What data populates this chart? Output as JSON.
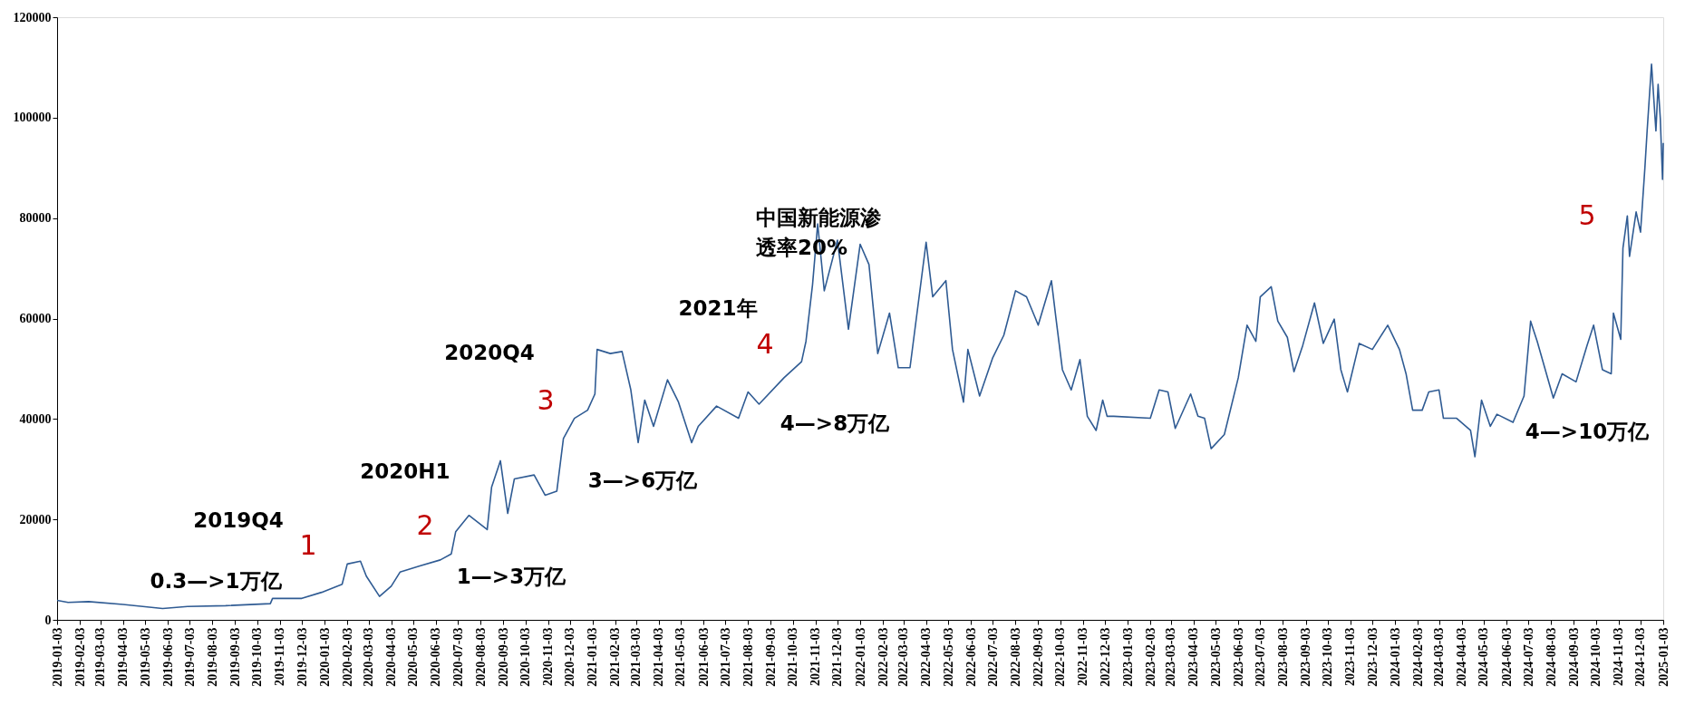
{
  "chart_data": {
    "type": "line",
    "xlim": [
      "2019-01-03",
      "2025-01-03"
    ],
    "ylim": [
      0,
      120000
    ],
    "yticks": [
      0,
      20000,
      40000,
      60000,
      80000,
      100000,
      120000
    ],
    "xticks": [
      "2019-01-03",
      "2019-02-03",
      "2019-03-03",
      "2019-04-03",
      "2019-05-03",
      "2019-06-03",
      "2019-07-03",
      "2019-08-03",
      "2019-09-03",
      "2019-10-03",
      "2019-11-03",
      "2019-12-03",
      "2020-01-03",
      "2020-02-03",
      "2020-03-03",
      "2020-04-03",
      "2020-05-03",
      "2020-06-03",
      "2020-07-03",
      "2020-08-03",
      "2020-09-03",
      "2020-10-03",
      "2020-11-03",
      "2020-12-03",
      "2021-01-03",
      "2021-02-03",
      "2021-03-03",
      "2021-04-03",
      "2021-05-03",
      "2021-06-03",
      "2021-07-03",
      "2021-08-03",
      "2021-09-03",
      "2021-10-03",
      "2021-11-03",
      "2021-12-03",
      "2022-01-03",
      "2022-02-03",
      "2022-03-03",
      "2022-04-03",
      "2022-05-03",
      "2022-06-03",
      "2022-07-03",
      "2022-08-03",
      "2022-09-03",
      "2022-10-03",
      "2022-11-03",
      "2022-12-03",
      "2023-01-03",
      "2023-02-03",
      "2023-03-03",
      "2023-04-03",
      "2023-05-03",
      "2023-06-03",
      "2023-07-03",
      "2023-08-03",
      "2023-09-03",
      "2023-10-03",
      "2023-11-03",
      "2023-12-03",
      "2024-01-03",
      "2024-02-03",
      "2024-03-03",
      "2024-04-03",
      "2024-05-03",
      "2024-06-03",
      "2024-07-03",
      "2024-08-03",
      "2024-09-03",
      "2024-10-03",
      "2024-11-03",
      "2024-12-03",
      "2025-01-03"
    ],
    "x": [
      "2019-01-03",
      "2019-01-18",
      "2019-02-15",
      "2019-04-03",
      "2019-05-27",
      "2019-06-30",
      "2019-08-21",
      "2019-10-21",
      "2019-10-24",
      "2019-12-03",
      "2019-12-30",
      "2020-01-27",
      "2020-02-03",
      "2020-02-21",
      "2020-02-29",
      "2020-03-18",
      "2020-04-03",
      "2020-04-15",
      "2020-05-12",
      "2020-06-09",
      "2020-06-24",
      "2020-06-30",
      "2020-07-18",
      "2020-08-12",
      "2020-08-18",
      "2020-08-30",
      "2020-09-09",
      "2020-09-18",
      "2020-10-15",
      "2020-10-30",
      "2020-11-15",
      "2020-11-24",
      "2020-12-09",
      "2020-12-27",
      "2021-01-06",
      "2021-01-09",
      "2021-01-27",
      "2021-02-12",
      "2021-02-24",
      "2021-03-06",
      "2021-03-15",
      "2021-03-27",
      "2021-04-15",
      "2021-04-30",
      "2021-05-18",
      "2021-05-27",
      "2021-06-21",
      "2021-07-21",
      "2021-08-03",
      "2021-08-18",
      "2021-09-21",
      "2021-10-15",
      "2021-10-21",
      "2021-10-30",
      "2021-11-06",
      "2021-11-15",
      "2021-12-03",
      "2021-12-18",
      "2022-01-03",
      "2022-01-15",
      "2022-01-27",
      "2022-02-12",
      "2022-02-24",
      "2022-03-12",
      "2022-04-03",
      "2022-04-12",
      "2022-04-30",
      "2022-05-09",
      "2022-05-24",
      "2022-05-30",
      "2022-06-15",
      "2022-07-03",
      "2022-07-18",
      "2022-08-03",
      "2022-08-18",
      "2022-09-03",
      "2022-09-21",
      "2022-09-27",
      "2022-10-06",
      "2022-10-18",
      "2022-10-30",
      "2022-11-09",
      "2022-11-21",
      "2022-11-30",
      "2022-12-06",
      "2022-12-15",
      "2023-02-03",
      "2023-02-15",
      "2023-02-27",
      "2023-03-09",
      "2023-03-30",
      "2023-04-09",
      "2023-04-18",
      "2023-04-27",
      "2023-05-15",
      "2023-06-03",
      "2023-06-15",
      "2023-06-27",
      "2023-07-03",
      "2023-07-18",
      "2023-07-27",
      "2023-08-09",
      "2023-08-18",
      "2023-08-30",
      "2023-09-15",
      "2023-09-27",
      "2023-10-12",
      "2023-10-21",
      "2023-10-30",
      "2023-11-15",
      "2023-12-03",
      "2023-12-24",
      "2024-01-09",
      "2024-01-18",
      "2024-01-27",
      "2024-02-09",
      "2024-02-18",
      "2024-03-03",
      "2024-03-09",
      "2024-03-27",
      "2024-04-15",
      "2024-04-21",
      "2024-04-30",
      "2024-05-12",
      "2024-05-21",
      "2024-06-12",
      "2024-06-27",
      "2024-07-06",
      "2024-07-15",
      "2024-08-06",
      "2024-08-18",
      "2024-09-06",
      "2024-09-21",
      "2024-09-30",
      "2024-10-12",
      "2024-10-24",
      "2024-10-27",
      "2024-11-06",
      "2024-11-09",
      "2024-11-15",
      "2024-11-18",
      "2024-11-27",
      "2024-12-03",
      "2024-12-09",
      "2024-12-12",
      "2024-12-18",
      "2024-12-24",
      "2024-12-27",
      "2024-12-30",
      "2025-01-02",
      "2025-01-03"
    ],
    "series": [
      {
        "color": "#2f5b93",
        "values": [
          3870,
          3470,
          3630,
          3060,
          2260,
          2660,
          2820,
          3220,
          4270,
          4270,
          5480,
          7090,
          11120,
          11690,
          8700,
          4670,
          6690,
          9510,
          10720,
          11930,
          13140,
          17570,
          20800,
          17970,
          26440,
          31680,
          21200,
          28050,
          28850,
          24820,
          25630,
          36110,
          40140,
          41750,
          44970,
          53840,
          53030,
          53440,
          45780,
          35300,
          43760,
          38530,
          47800,
          43360,
          35300,
          38530,
          42560,
          40140,
          45380,
          42960,
          48200,
          51420,
          55450,
          66740,
          78830,
          65530,
          75600,
          57870,
          74800,
          70770,
          53030,
          61090,
          50210,
          50210,
          75200,
          64320,
          67540,
          53840,
          43360,
          53840,
          44570,
          52230,
          56660,
          65530,
          64320,
          58680,
          67540,
          60290,
          49810,
          45780,
          51820,
          40540,
          37720,
          43760,
          40540,
          40540,
          40140,
          45780,
          45380,
          38120,
          44970,
          40540,
          40140,
          34090,
          36910,
          48200,
          58680,
          55450,
          64320,
          66330,
          59480,
          56260,
          49410,
          54650,
          63110,
          55050,
          59880,
          49810,
          45380,
          55050,
          53840,
          58680,
          53840,
          49000,
          41750,
          41750,
          45380,
          45780,
          40140,
          40140,
          37720,
          32480,
          43760,
          38530,
          40940,
          39330,
          44570,
          59480,
          55450,
          44170,
          49000,
          47390,
          54650,
          58680,
          49810,
          49000,
          61090,
          55850,
          73990,
          80440,
          72380,
          81240,
          77210,
          90110,
          97360,
          110660,
          97360,
          106630,
          99780,
          87690,
          94950
        ]
      }
    ],
    "annotations": [
      "2019Q4",
      "0.3—>1万亿",
      "1",
      "2020H1",
      "2",
      "1—>3万亿",
      "2020Q4",
      "3",
      "3—>6万亿",
      "2021年",
      "4",
      "4—>8万亿",
      "中国新能源渗透率20%",
      "5",
      "4—>10万亿"
    ],
    "grid": false
  }
}
